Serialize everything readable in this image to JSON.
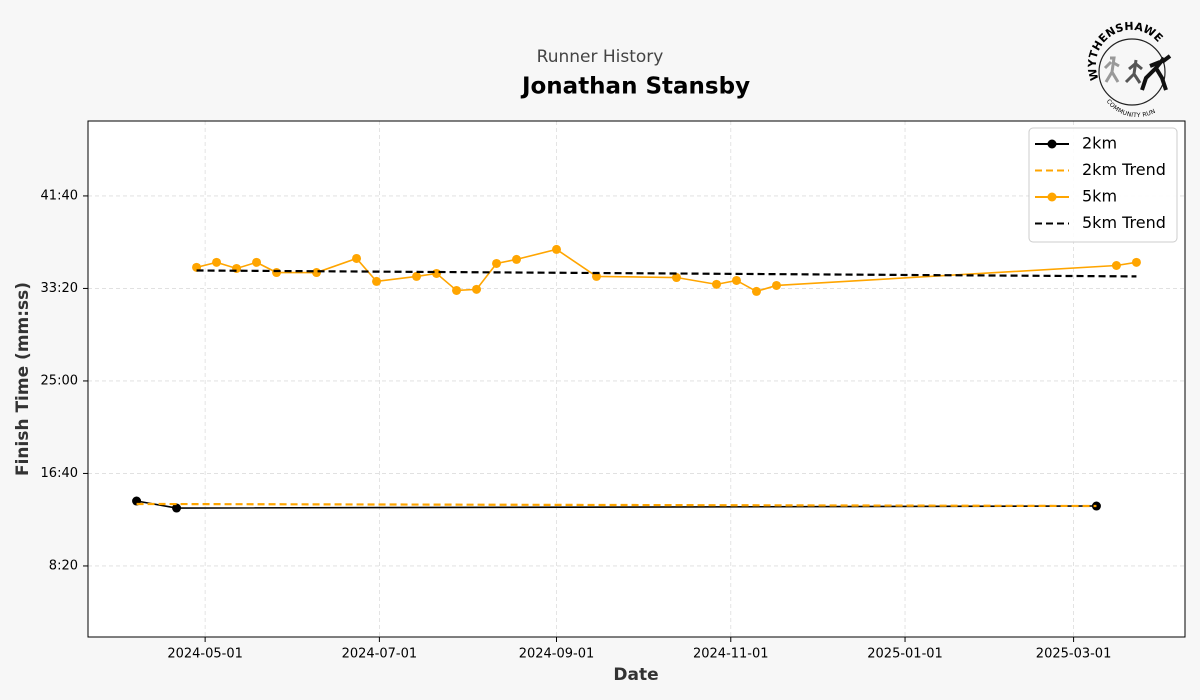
{
  "chart_data": {
    "type": "line",
    "title": "Jonathan Stansby",
    "subtitle": "Runner History",
    "x_label": "Date",
    "y_label": "Finish Time (mm:ss)",
    "logo": {
      "top_text": "WYTHENSHAWE",
      "bottom_text": "COMMUNITY RUN"
    },
    "xlim": [
      "2024-03-21",
      "2025-04-09"
    ],
    "xticks": [
      "2024-05-01",
      "2024-07-01",
      "2024-09-01",
      "2024-11-01",
      "2025-01-01",
      "2025-03-01"
    ],
    "ylim": [
      116,
      2905
    ],
    "yticks": [
      {
        "value": 500,
        "label": "8:20"
      },
      {
        "value": 1000,
        "label": "16:40"
      },
      {
        "value": 1500,
        "label": "25:00"
      },
      {
        "value": 2000,
        "label": "33:20"
      },
      {
        "value": 2500,
        "label": "41:40"
      }
    ],
    "grid": true,
    "legend": "upper right",
    "series": [
      {
        "name": "2km",
        "color": "#000000",
        "linestyle": "solid",
        "marker": true,
        "x": [
          "2024-04-07",
          "2024-04-21",
          "2025-03-09"
        ],
        "values": [
          851,
          813,
          824
        ]
      },
      {
        "name": "2km Trend",
        "color": "#ffa500",
        "linestyle": "dashed",
        "marker": false,
        "x": [
          "2024-04-07",
          "2025-03-09"
        ],
        "values": [
          835,
          824
        ]
      },
      {
        "name": "5km",
        "color": "#ffa500",
        "linestyle": "solid",
        "marker": true,
        "x": [
          "2024-04-28",
          "2024-05-05",
          "2024-05-12",
          "2024-05-19",
          "2024-05-26",
          "2024-06-09",
          "2024-06-23",
          "2024-06-30",
          "2024-07-14",
          "2024-07-21",
          "2024-07-28",
          "2024-08-04",
          "2024-08-11",
          "2024-08-18",
          "2024-09-01",
          "2024-09-15",
          "2024-10-13",
          "2024-10-27",
          "2024-11-03",
          "2024-11-10",
          "2024-11-17",
          "2025-03-16",
          "2025-03-23"
        ],
        "values": [
          2114,
          2141,
          2108,
          2141,
          2086,
          2086,
          2162,
          2038,
          2065,
          2081,
          1989,
          1995,
          2135,
          2157,
          2211,
          2065,
          2059,
          2022,
          2043,
          1984,
          2016,
          2124,
          2141
        ]
      },
      {
        "name": "5km Trend",
        "color": "#000000",
        "linestyle": "dashed",
        "marker": false,
        "x": [
          "2024-04-28",
          "2025-03-23"
        ],
        "values": [
          2097,
          2065
        ]
      }
    ]
  }
}
